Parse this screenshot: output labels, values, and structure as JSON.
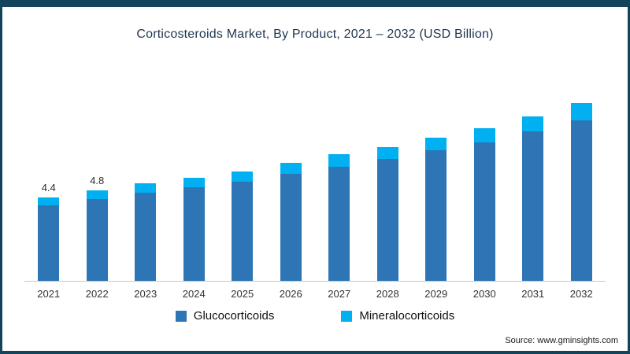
{
  "frame": {
    "accent_color": "#12455c"
  },
  "title": "Corticosteroids Market, By Product, 2021 – 2032 (USD Billion)",
  "source": "Source: www.gminsights.com",
  "chart_data": {
    "type": "bar",
    "stacked": true,
    "title": "Corticosteroids Market, By Product, 2021 – 2032 (USD Billion)",
    "categories": [
      "2021",
      "2022",
      "2023",
      "2024",
      "2025",
      "2026",
      "2027",
      "2028",
      "2029",
      "2030",
      "2031",
      "2032"
    ],
    "series": [
      {
        "name": "Glucocorticoids",
        "color": "#2e75b6",
        "values": [
          4.0,
          4.35,
          4.65,
          4.95,
          5.25,
          5.65,
          6.05,
          6.45,
          6.9,
          7.35,
          7.9,
          8.5
        ]
      },
      {
        "name": "Mineralocorticoids",
        "color": "#00b0f0",
        "values": [
          0.4,
          0.45,
          0.5,
          0.5,
          0.55,
          0.6,
          0.65,
          0.65,
          0.7,
          0.75,
          0.8,
          0.9
        ]
      }
    ],
    "totals": [
      4.4,
      4.8,
      5.15,
      5.45,
      5.8,
      6.25,
      6.7,
      7.1,
      7.6,
      8.1,
      8.7,
      9.4
    ],
    "data_labels": [
      "4.4",
      "4.8",
      "",
      "",
      "",
      "",
      "",
      "",
      "",
      "",
      "",
      ""
    ],
    "xlabel": "",
    "ylabel": "",
    "ylim": [
      0,
      10
    ],
    "grid": false,
    "legend_position": "bottom"
  }
}
